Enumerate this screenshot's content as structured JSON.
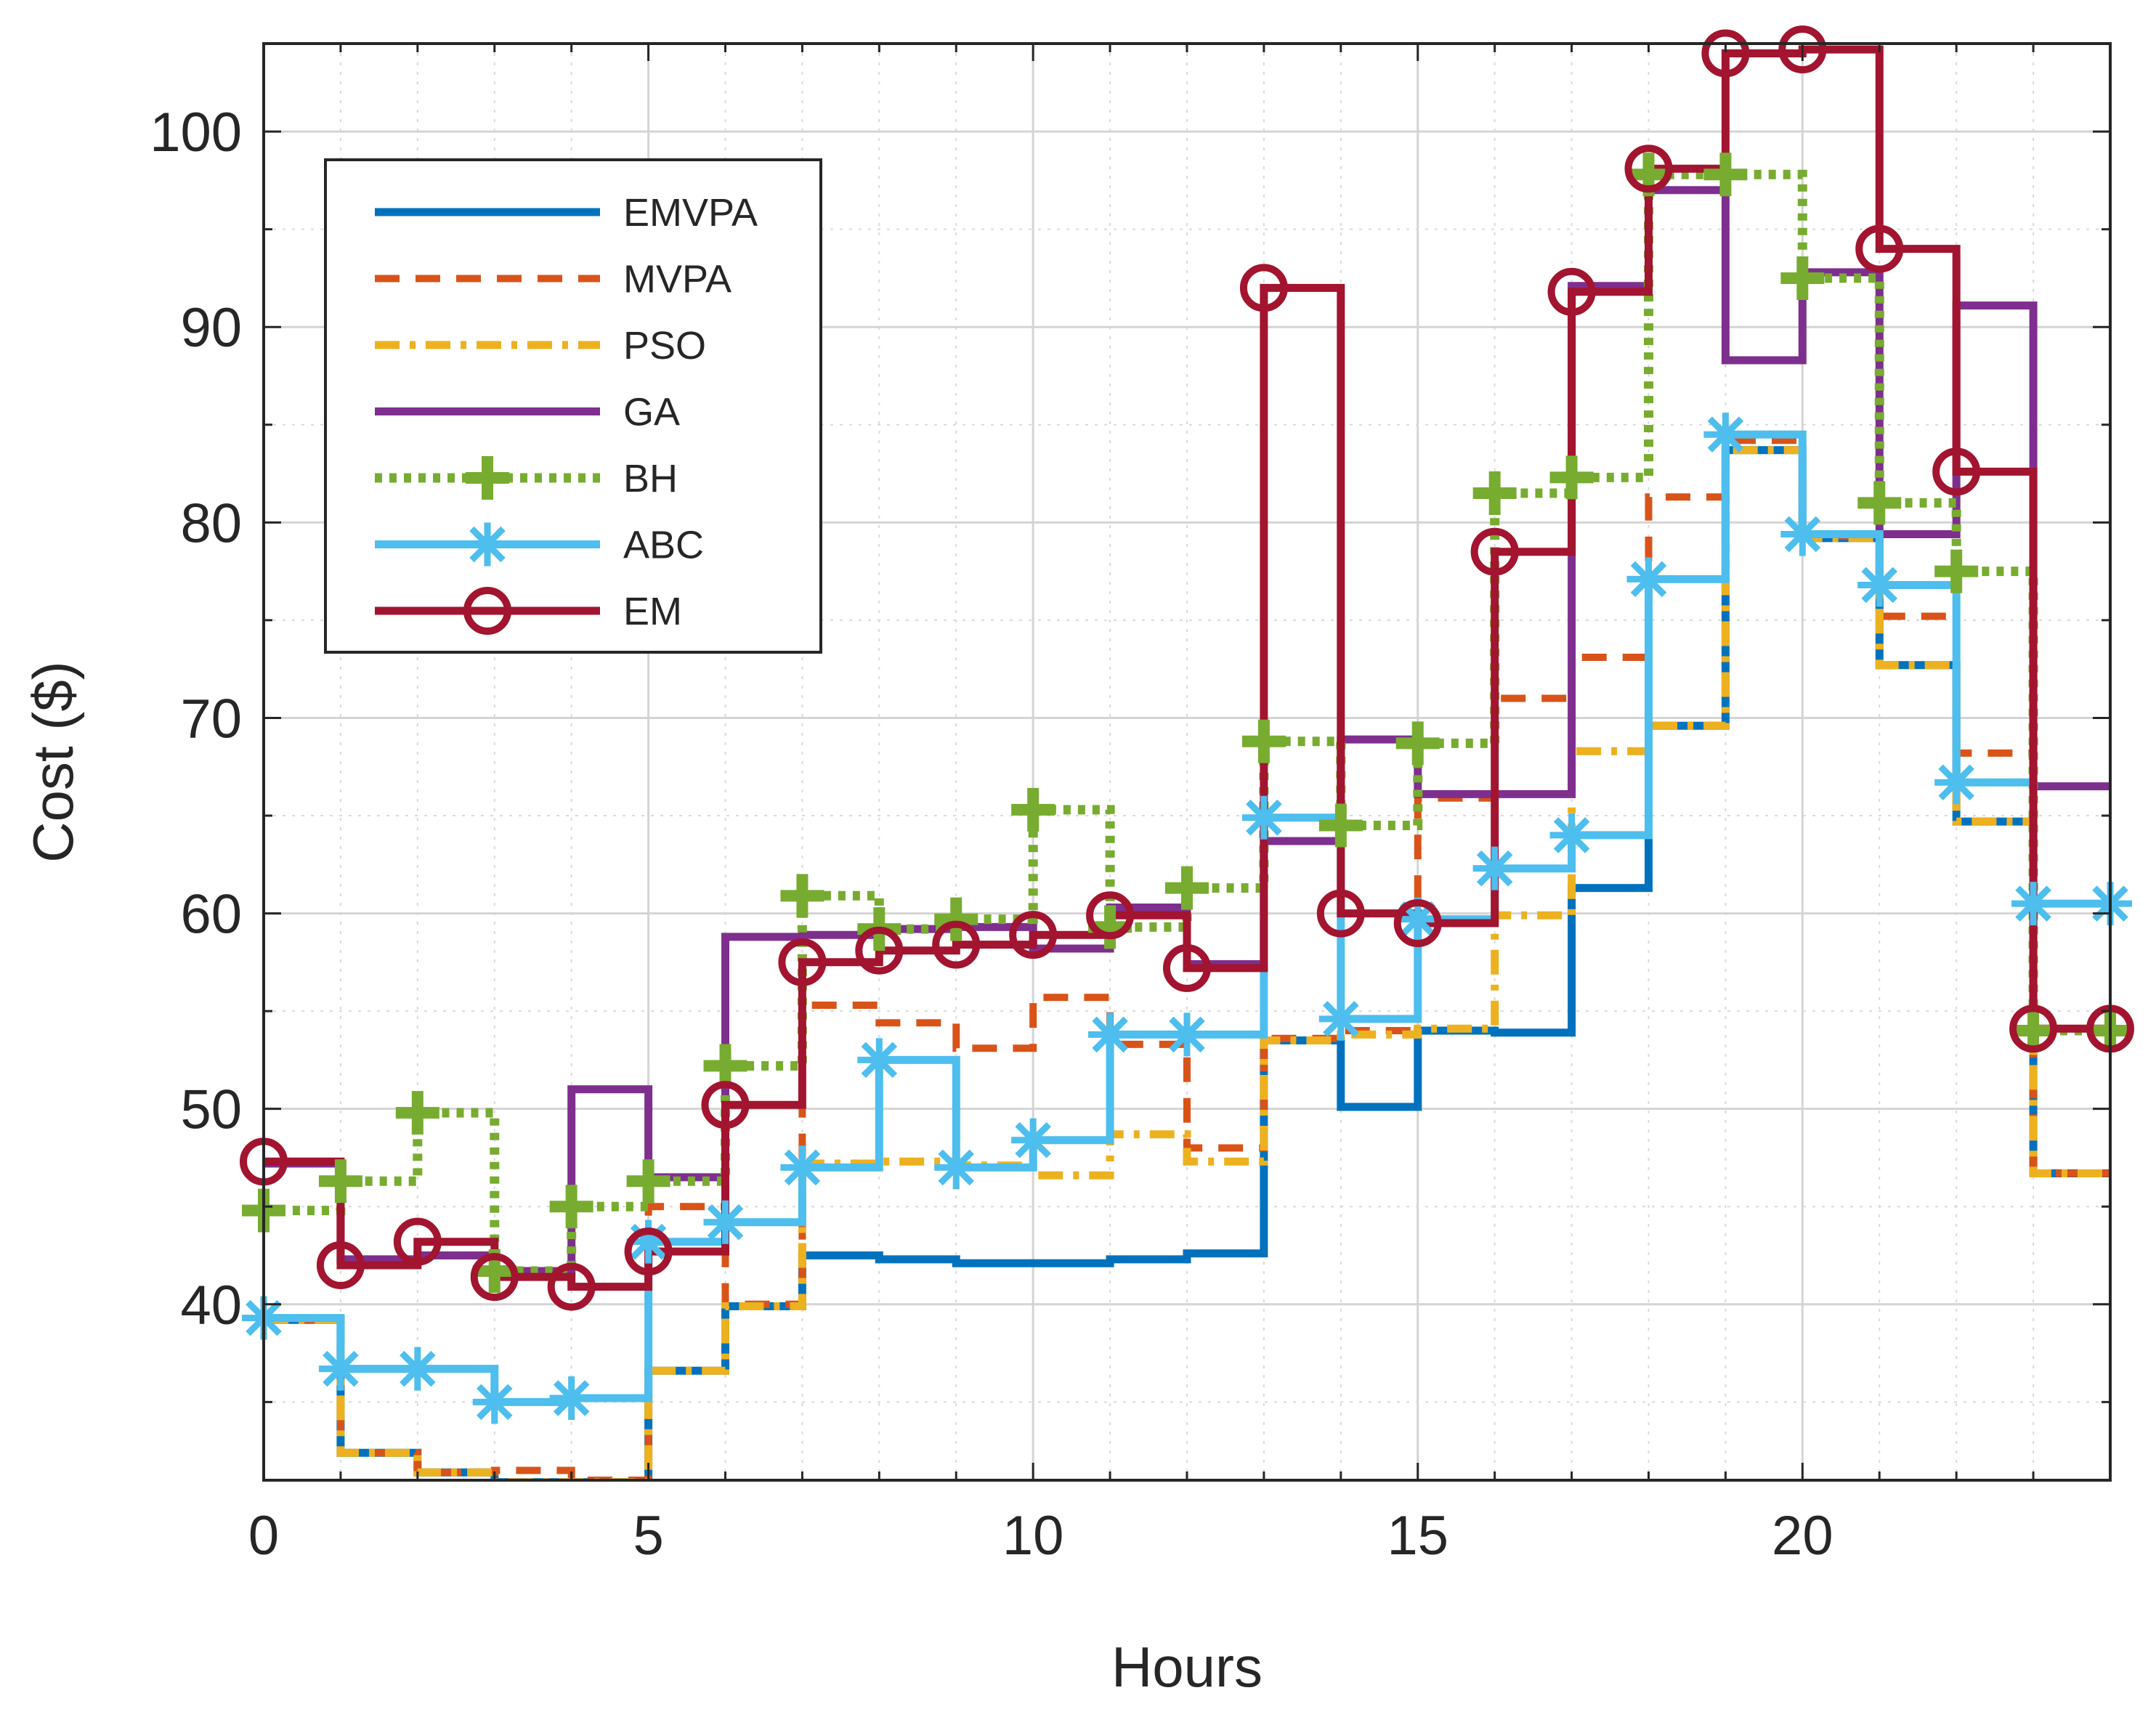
{
  "chart_data": {
    "type": "line",
    "step": true,
    "title": "",
    "xlabel": "Hours",
    "ylabel": "Cost ($)",
    "xlim": [
      0,
      24
    ],
    "ylim": [
      31,
      104.5
    ],
    "xticks": [
      0,
      5,
      10,
      15,
      20
    ],
    "yticks": [
      40,
      50,
      60,
      70,
      80,
      90,
      100
    ],
    "grid": true,
    "legend_position": "top-left",
    "x": [
      0,
      1,
      2,
      3,
      4,
      5,
      6,
      7,
      8,
      9,
      10,
      11,
      12,
      13,
      14,
      15,
      16,
      17,
      18,
      19,
      20,
      21,
      22,
      23,
      24
    ],
    "series": [
      {
        "name": "EMVPA",
        "color": "#0072BD",
        "style": "solid",
        "marker": "none",
        "values": [
          39.2,
          32.4,
          31.4,
          30.9,
          30.9,
          36.6,
          39.9,
          42.5,
          42.3,
          42.1,
          42.1,
          42.3,
          42.6,
          53.5,
          50.1,
          54.0,
          53.9,
          61.3,
          69.6,
          83.7,
          79.2,
          72.7,
          64.7,
          46.7,
          46.7
        ]
      },
      {
        "name": "MVPA",
        "color": "#D95319",
        "style": "dashed",
        "marker": "none",
        "values": [
          39.2,
          32.4,
          31.4,
          31.5,
          31.0,
          45.0,
          40.0,
          55.3,
          54.4,
          53.1,
          55.7,
          53.3,
          48.0,
          53.6,
          54.0,
          65.9,
          71.0,
          73.1,
          81.3,
          84.2,
          79.3,
          75.2,
          68.2,
          46.7,
          46.7
        ]
      },
      {
        "name": "PSO",
        "color": "#EDB120",
        "style": "dashdot",
        "marker": "none",
        "values": [
          39.2,
          32.4,
          31.4,
          30.9,
          30.9,
          36.6,
          39.9,
          47.2,
          47.3,
          47.1,
          46.6,
          48.7,
          47.3,
          53.5,
          53.8,
          54.1,
          59.9,
          68.3,
          69.6,
          83.7,
          79.2,
          72.7,
          64.7,
          46.7,
          46.7
        ]
      },
      {
        "name": "GA",
        "color": "#7E2F8E",
        "style": "solid",
        "marker": "none",
        "values": [
          47.2,
          42.3,
          42.5,
          41.7,
          51.0,
          46.5,
          58.8,
          58.9,
          59.2,
          59.3,
          58.2,
          60.3,
          57.4,
          63.7,
          68.9,
          66.1,
          66.1,
          92.1,
          97.0,
          88.3,
          92.8,
          79.4,
          91.1,
          66.5,
          66.5
        ]
      },
      {
        "name": "BH",
        "color": "#77AC30",
        "style": "dotted",
        "marker": "plus",
        "values": [
          44.8,
          46.3,
          49.8,
          41.7,
          45.0,
          46.3,
          52.2,
          60.9,
          59.2,
          59.7,
          65.3,
          59.3,
          61.3,
          68.8,
          64.5,
          68.7,
          81.5,
          82.3,
          97.8,
          97.8,
          92.5,
          81.0,
          77.5,
          54.0,
          54.0
        ]
      },
      {
        "name": "ABC",
        "color": "#4DBEEE",
        "style": "solid",
        "marker": "asterisk",
        "values": [
          39.3,
          36.7,
          36.7,
          35.0,
          35.2,
          43.2,
          44.2,
          47.0,
          52.5,
          47.0,
          48.4,
          53.8,
          53.8,
          64.9,
          54.6,
          59.7,
          62.3,
          64.0,
          77.1,
          84.5,
          79.4,
          76.8,
          66.7,
          60.5,
          60.5
        ]
      },
      {
        "name": "EM",
        "color": "#A2142F",
        "style": "solid",
        "marker": "circle",
        "values": [
          47.3,
          42.0,
          43.2,
          41.4,
          40.9,
          42.7,
          50.2,
          57.5,
          58.1,
          58.4,
          58.9,
          59.9,
          57.2,
          92.0,
          60.0,
          59.5,
          78.5,
          91.8,
          98.1,
          104.0,
          104.2,
          94.0,
          82.6,
          54.1,
          54.1
        ]
      }
    ]
  }
}
